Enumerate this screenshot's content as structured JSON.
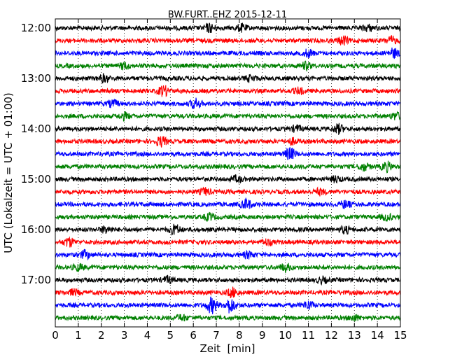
{
  "chart_data": {
    "type": "line",
    "title": "BW.FURT..EHZ 2015-12-11",
    "xlabel": "Zeit  [min]",
    "ylabel": "UTC (Lokalzeit = UTC + 01:00)",
    "xlim": [
      0,
      15
    ],
    "xticks": [
      "0",
      "1",
      "2",
      "3",
      "4",
      "5",
      "6",
      "7",
      "8",
      "9",
      "10",
      "11",
      "12",
      "13",
      "14",
      "15"
    ],
    "ytick_labels": [
      "12:00",
      "13:00",
      "14:00",
      "15:00",
      "16:00",
      "17:00"
    ],
    "grid": "vertical dotted at each minute",
    "trace_colors": [
      "#000000",
      "#ff0000",
      "#0000ff",
      "#008000"
    ],
    "series": [
      {
        "time": "12:00",
        "color": "#000000",
        "bursts": [
          [
            6.7,
            1.6
          ],
          [
            8.1,
            1.4
          ],
          [
            13.6,
            1.2
          ]
        ]
      },
      {
        "time": "12:15",
        "color": "#ff0000",
        "bursts": [
          [
            12.5,
            1.6
          ],
          [
            14.6,
            1.5
          ]
        ]
      },
      {
        "time": "12:30",
        "color": "#0000ff",
        "bursts": [
          [
            11.0,
            1.4
          ],
          [
            14.7,
            1.8
          ]
        ]
      },
      {
        "time": "12:45",
        "color": "#008000",
        "bursts": [
          [
            3.0,
            1.2
          ],
          [
            10.9,
            1.4
          ]
        ]
      },
      {
        "time": "13:00",
        "color": "#000000",
        "bursts": [
          [
            2.1,
            1.4
          ],
          [
            8.5,
            1.2
          ]
        ]
      },
      {
        "time": "13:15",
        "color": "#ff0000",
        "bursts": [
          [
            4.7,
            2.0
          ],
          [
            10.6,
            1.1
          ]
        ]
      },
      {
        "time": "13:30",
        "color": "#0000ff",
        "bursts": [
          [
            6.1,
            2.0
          ],
          [
            2.5,
            1.3
          ]
        ]
      },
      {
        "time": "13:45",
        "color": "#008000",
        "bursts": [
          [
            3.0,
            1.3
          ],
          [
            14.8,
            1.3
          ]
        ]
      },
      {
        "time": "14:00",
        "color": "#000000",
        "bursts": [
          [
            12.3,
            1.8
          ],
          [
            10.5,
            1.2
          ]
        ]
      },
      {
        "time": "14:15",
        "color": "#ff0000",
        "bursts": [
          [
            4.6,
            1.9
          ],
          [
            10.3,
            1.1
          ]
        ]
      },
      {
        "time": "14:30",
        "color": "#0000ff",
        "bursts": [
          [
            10.2,
            2.4
          ]
        ]
      },
      {
        "time": "14:45",
        "color": "#008000",
        "bursts": [
          [
            13.4,
            1.5
          ],
          [
            14.4,
            1.8
          ]
        ]
      },
      {
        "time": "15:00",
        "color": "#000000",
        "bursts": [
          [
            7.9,
            1.2
          ],
          [
            12.2,
            1.1
          ]
        ]
      },
      {
        "time": "15:15",
        "color": "#ff0000",
        "bursts": [
          [
            6.5,
            1.3
          ],
          [
            11.5,
            1.1
          ]
        ]
      },
      {
        "time": "15:30",
        "color": "#0000ff",
        "bursts": [
          [
            8.3,
            2.0
          ],
          [
            12.6,
            1.4
          ]
        ]
      },
      {
        "time": "15:45",
        "color": "#008000",
        "bursts": [
          [
            6.7,
            1.4
          ],
          [
            14.4,
            1.2
          ]
        ]
      },
      {
        "time": "16:00",
        "color": "#000000",
        "bursts": [
          [
            5.2,
            2.0
          ],
          [
            2.2,
            1.3
          ],
          [
            12.6,
            1.3
          ]
        ]
      },
      {
        "time": "16:15",
        "color": "#ff0000",
        "bursts": [
          [
            0.6,
            1.8
          ],
          [
            9.2,
            1.1
          ]
        ]
      },
      {
        "time": "16:30",
        "color": "#0000ff",
        "bursts": [
          [
            1.3,
            1.6
          ],
          [
            8.4,
            1.2
          ]
        ]
      },
      {
        "time": "16:45",
        "color": "#008000",
        "bursts": [
          [
            1.0,
            1.3
          ],
          [
            10.0,
            1.5
          ]
        ]
      },
      {
        "time": "17:00",
        "color": "#000000",
        "bursts": [
          [
            4.9,
            1.3
          ],
          [
            11.6,
            1.1
          ]
        ]
      },
      {
        "time": "17:15",
        "color": "#ff0000",
        "bursts": [
          [
            7.7,
            1.8
          ],
          [
            0.8,
            1.1
          ]
        ]
      },
      {
        "time": "17:30",
        "color": "#0000ff",
        "bursts": [
          [
            6.8,
            3.2
          ],
          [
            7.6,
            3.0
          ],
          [
            11.0,
            1.6
          ]
        ]
      },
      {
        "time": "17:45",
        "color": "#008000",
        "bursts": [
          [
            5.5,
            1.1
          ],
          [
            13.0,
            1.1
          ]
        ]
      }
    ]
  }
}
